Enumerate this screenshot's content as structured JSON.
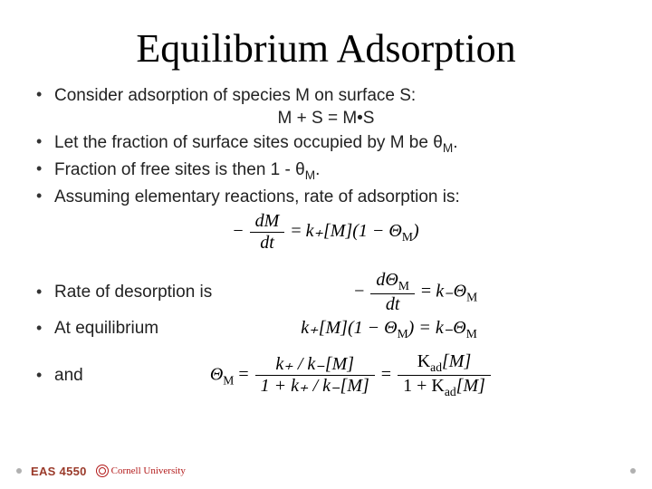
{
  "title": "Equilibrium Adsorption",
  "bullets": {
    "b1": "Consider adsorption of species M on surface S:",
    "eq_center": "M + S = M•S",
    "b2_pre": "Let the fraction of surface sites occupied by M be ",
    "b2_theta": "θ",
    "b2_sub": "M",
    "b2_post": ".",
    "b3_pre": "Fraction of free sites is then 1 - ",
    "b3_theta": "θ",
    "b3_sub": "M",
    "b3_post": ".",
    "b4": "Assuming elementary reactions, rate of adsorption is:",
    "b5": "Rate of desorption is",
    "b6": "At equilibrium",
    "b7": "and"
  },
  "formulas": {
    "adsorption_lhs_num": "dM",
    "adsorption_lhs_den": "dt",
    "adsorption_rhs": "k₊[M](1 − Θ",
    "adsorption_rhs_sub": "M",
    "adsorption_rhs_end": ")",
    "desorption_lhs_num": "dΘ",
    "desorption_lhs_num_sub": "M",
    "desorption_lhs_den": "dt",
    "desorption_rhs": "k₋Θ",
    "desorption_rhs_sub": "M",
    "equil_lhs": "k₊[M](1 − Θ",
    "equil_lhs_sub": "M",
    "equil_lhs_end": ") = k₋Θ",
    "equil_rhs_sub": "M",
    "final_lhs": "Θ",
    "final_lhs_sub": "M",
    "final_eq": " = ",
    "final_f1_num": "k₊ / k₋[M]",
    "final_f1_den": "1 + k₊ / k₋[M]",
    "final_mid": " = ",
    "final_f2_num_pre": "K",
    "final_f2_num_sub": "ad",
    "final_f2_num_post": "[M]",
    "final_f2_den_pre": "1 + K",
    "final_f2_den_sub": "ad",
    "final_f2_den_post": "[M]"
  },
  "footer": {
    "course": "EAS 4550",
    "university": "Cornell University"
  },
  "colors": {
    "title_color": "#000000",
    "text_color": "#222222",
    "accent_red": "#b31b1b",
    "course_color": "#9a3a2a",
    "dot_color": "#b0b0b0",
    "background": "#ffffff"
  },
  "typography": {
    "title_family": "Garamond/serif",
    "title_size_pt": 33,
    "body_family": "Arial",
    "body_size_pt": 14,
    "formula_family": "Times New Roman italic"
  }
}
